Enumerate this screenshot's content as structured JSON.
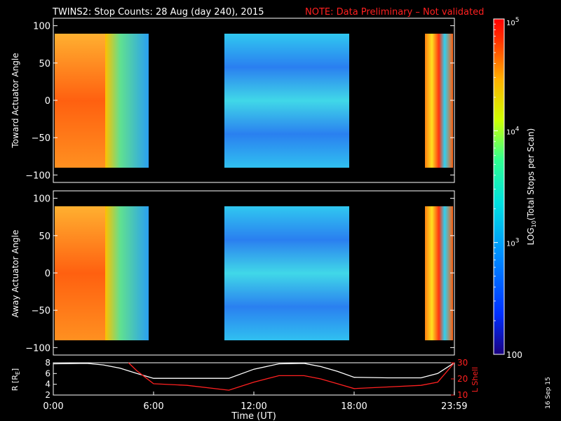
{
  "chart_data": [
    {
      "type": "heatmap",
      "title": "TWINS2: Stop Counts: 28 Aug (day 240), 2015",
      "note": "NOTE: Data Preliminary – Not validated",
      "ylabel": "Toward Actuator Angle",
      "ylim": [
        -110,
        110
      ],
      "yticks": [
        "100",
        "50",
        "0",
        "−50",
        "−100"
      ],
      "grid": false,
      "data_segments": [
        {
          "start": "00:00",
          "end": "05:45"
        },
        {
          "start": "10:15",
          "end": "18:00"
        },
        {
          "start": "22:45",
          "end": "23:59"
        }
      ],
      "colors": {
        "high": "#ff3000",
        "mid": "#19e6d0",
        "low": "#2a7bf0",
        "gap": "#000000"
      }
    },
    {
      "type": "heatmap",
      "ylabel": "Away Actuator Angle",
      "ylim": [
        -110,
        110
      ],
      "yticks": [
        "100",
        "50",
        "0",
        "−50",
        "−100"
      ],
      "grid": false
    },
    {
      "type": "line",
      "xlabel": "Time (UT)",
      "xticks": [
        "0:00",
        "6:00",
        "12:00",
        "18:00",
        "23:59"
      ],
      "ylabel_left": "R [R",
      "ylabel_left_sub": "E",
      "ylabel_left_end": "]",
      "ylabel_right": "L Shell",
      "ylim_left": [
        2,
        8
      ],
      "ylim_right": [
        10,
        30
      ],
      "yticks_left": [
        "8",
        "6",
        "4",
        "2"
      ],
      "yticks_right": [
        "30",
        "20",
        "10"
      ],
      "series": [
        {
          "axis": "left",
          "color": "#ffffff",
          "x": [
            0,
            2,
            3,
            4,
            5,
            6,
            8,
            10.5,
            12,
            13.5,
            15,
            16,
            17,
            18,
            20,
            22,
            23,
            23.99
          ],
          "y": [
            7.8,
            7.9,
            7.6,
            7.0,
            6.0,
            5.1,
            5.1,
            5.1,
            6.8,
            7.8,
            7.9,
            7.3,
            6.4,
            5.3,
            5.2,
            5.2,
            6.0,
            8.0
          ]
        },
        {
          "axis": "right",
          "color": "#ff2020",
          "x": [
            4.5,
            5.0,
            5.5,
            6,
            8,
            10.5,
            12,
            13.5,
            15,
            16,
            17,
            18,
            20,
            22,
            23,
            23.5,
            23.99
          ],
          "y": [
            30,
            25,
            21,
            17,
            16,
            13,
            18,
            22,
            22,
            20,
            17,
            14,
            15,
            16,
            18,
            24,
            30
          ]
        }
      ]
    }
  ],
  "colorbar": {
    "label": "LOG",
    "label_sub": "10",
    "label_end": "(Total Stops per Scan)",
    "ticks": [
      {
        "base": "10",
        "exp": "5"
      },
      {
        "base": "10",
        "exp": "4"
      },
      {
        "base": "10",
        "exp": "3"
      },
      {
        "base": "100",
        "exp": ""
      }
    ]
  },
  "stamp": "16 Sep 15"
}
